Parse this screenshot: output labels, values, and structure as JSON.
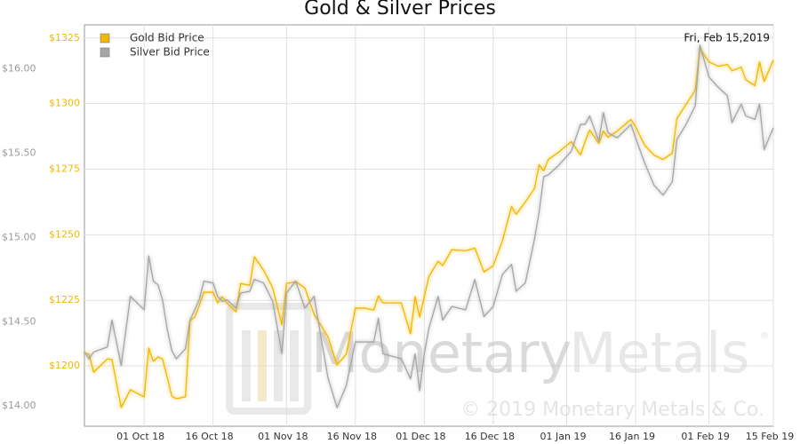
{
  "chart_data": {
    "type": "line",
    "title": "Gold & Silver Prices",
    "annotation": "Fri, Feb 15,2019",
    "watermark": {
      "logo_a": "Monetary",
      "logo_b": "Metals",
      "registered": "®",
      "copyright": "© 2019 Monetary Metals & Co."
    },
    "x": [
      "2018-09-18",
      "2018-09-19",
      "2018-09-20",
      "2018-09-23",
      "2018-09-24",
      "2018-09-26",
      "2018-09-28",
      "2018-10-01",
      "2018-10-02",
      "2018-10-03",
      "2018-10-04",
      "2018-10-05",
      "2018-10-06",
      "2018-10-07",
      "2018-10-08",
      "2018-10-10",
      "2018-10-11",
      "2018-10-12",
      "2018-10-13",
      "2018-10-14",
      "2018-10-16",
      "2018-10-17",
      "2018-10-18",
      "2018-10-19",
      "2018-10-21",
      "2018-10-22",
      "2018-10-24",
      "2018-10-25",
      "2018-10-27",
      "2018-10-29",
      "2018-10-31",
      "2018-11-01",
      "2018-11-03",
      "2018-11-05",
      "2018-11-07",
      "2018-11-10",
      "2018-11-12",
      "2018-11-14",
      "2018-11-16",
      "2018-11-18",
      "2018-11-20",
      "2018-11-21",
      "2018-11-22",
      "2018-11-26",
      "2018-11-28",
      "2018-11-29",
      "2018-11-30",
      "2018-12-01",
      "2018-12-02",
      "2018-12-04",
      "2018-12-05",
      "2018-12-07",
      "2018-12-10",
      "2018-12-12",
      "2018-12-14",
      "2018-12-16",
      "2018-12-18",
      "2018-12-20",
      "2018-12-21",
      "2018-12-23",
      "2018-12-25",
      "2018-12-26",
      "2018-12-27",
      "2018-12-28",
      "2018-12-30",
      "2019-01-02",
      "2019-01-04",
      "2019-01-05",
      "2019-01-06",
      "2019-01-08",
      "2019-01-09",
      "2019-01-10",
      "2019-01-12",
      "2019-01-15",
      "2019-01-16",
      "2019-01-18",
      "2019-01-20",
      "2019-01-22",
      "2019-01-24",
      "2019-01-25",
      "2019-01-27",
      "2019-01-29",
      "2019-01-30",
      "2019-02-01",
      "2019-02-03",
      "2019-02-05",
      "2019-02-06",
      "2019-02-08",
      "2019-02-09",
      "2019-02-11",
      "2019-02-12",
      "2019-02-13",
      "2019-02-15"
    ],
    "series": [
      {
        "name": "Gold Bid Price",
        "color": "#f2b705",
        "axis": "y",
        "values": [
          1205.1,
          1204.4,
          1197.6,
          1202.7,
          1202.4,
          1184.1,
          1190.9,
          1188.2,
          1206.8,
          1201.7,
          1203.4,
          1202.7,
          1195.9,
          1188.5,
          1187.5,
          1188.2,
          1217.2,
          1218.6,
          1223.0,
          1228.1,
          1228.1,
          1224.0,
          1226.4,
          1224.0,
          1220.6,
          1231.4,
          1230.7,
          1241.6,
          1236.5,
          1229.7,
          1215.6,
          1231.4,
          1232.1,
          1229.7,
          1219.6,
          1211.2,
          1200.4,
          1204.4,
          1222.0,
          1222.0,
          1221.3,
          1226.7,
          1224.0,
          1224.0,
          1212.2,
          1226.4,
          1218.6,
          1226.4,
          1234.1,
          1239.9,
          1238.2,
          1244.3,
          1243.9,
          1244.9,
          1235.8,
          1238.2,
          1247.6,
          1260.8,
          1257.8,
          1262.5,
          1267.6,
          1276.7,
          1274.3,
          1278.7,
          1281.1,
          1285.5,
          1280.4,
          1285.5,
          1289.9,
          1284.8,
          1289.5,
          1287.2,
          1289.5,
          1293.9,
          1291.2,
          1284.1,
          1280.4,
          1278.7,
          1281.1,
          1294.3,
          1299.7,
          1305.1,
          1320.9,
          1315.9,
          1314.2,
          1314.9,
          1312.5,
          1313.9,
          1309.1,
          1306.8,
          1315.9,
          1308.4,
          1316.6
        ]
      },
      {
        "name": "Silver Bid Price",
        "color": "#a6a6a6",
        "axis": "y2",
        "values": [
          14.32,
          14.28,
          14.32,
          14.35,
          14.51,
          14.24,
          14.65,
          14.57,
          14.89,
          14.74,
          14.72,
          14.63,
          14.46,
          14.33,
          14.28,
          14.34,
          14.51,
          14.57,
          14.63,
          14.74,
          14.73,
          14.65,
          14.62,
          14.63,
          14.58,
          14.67,
          14.68,
          14.75,
          14.73,
          14.62,
          14.31,
          14.67,
          14.74,
          14.58,
          14.65,
          14.17,
          13.99,
          14.12,
          14.38,
          14.38,
          14.38,
          14.52,
          14.31,
          14.28,
          14.16,
          14.31,
          14.09,
          14.31,
          14.46,
          14.65,
          14.51,
          14.59,
          14.57,
          14.75,
          14.53,
          14.59,
          14.78,
          14.84,
          14.68,
          14.73,
          14.99,
          15.15,
          15.36,
          15.37,
          15.42,
          15.51,
          15.67,
          15.67,
          15.72,
          15.57,
          15.74,
          15.62,
          15.59,
          15.67,
          15.59,
          15.44,
          15.31,
          15.25,
          15.33,
          15.58,
          15.67,
          15.78,
          16.14,
          15.95,
          15.89,
          15.84,
          15.68,
          15.79,
          15.72,
          15.7,
          15.79,
          15.52,
          15.65
        ]
      }
    ],
    "xlim": [
      "2018-09-18",
      "2019-02-15"
    ],
    "xticks": [
      {
        "value": "2018-10-01",
        "label": "01 Oct 18"
      },
      {
        "value": "2018-10-16",
        "label": "16 Oct 18"
      },
      {
        "value": "2018-11-01",
        "label": "01 Nov 18"
      },
      {
        "value": "2018-11-16",
        "label": "16 Nov 18"
      },
      {
        "value": "2018-12-01",
        "label": "01 Dec 18"
      },
      {
        "value": "2018-12-16",
        "label": "16 Dec 18"
      },
      {
        "value": "2019-01-01",
        "label": "01 Jan 19"
      },
      {
        "value": "2019-01-16",
        "label": "16 Jan 19"
      },
      {
        "value": "2019-02-01",
        "label": "01 Feb 19"
      },
      {
        "value": "2019-02-15",
        "label": "15 Feb 19"
      }
    ],
    "ylim": [
      1177,
      1330
    ],
    "yticks": [
      {
        "value": 1200,
        "label": "$1200"
      },
      {
        "value": 1225,
        "label": "$1225"
      },
      {
        "value": 1250,
        "label": "$1250"
      },
      {
        "value": 1275,
        "label": "$1275"
      },
      {
        "value": 1300,
        "label": "$1300"
      },
      {
        "value": 1325,
        "label": "$1325"
      }
    ],
    "y2lim": [
      13.88,
      16.26
    ],
    "y2ticks": [
      {
        "value": 14,
        "label": "$14.00"
      },
      {
        "value": 14.5,
        "label": "$14.50"
      },
      {
        "value": 15,
        "label": "$15.00"
      },
      {
        "value": 15.5,
        "label": "$15.50"
      },
      {
        "value": 16,
        "label": "$16.00"
      }
    ],
    "grid": true,
    "legend": "top-left"
  }
}
